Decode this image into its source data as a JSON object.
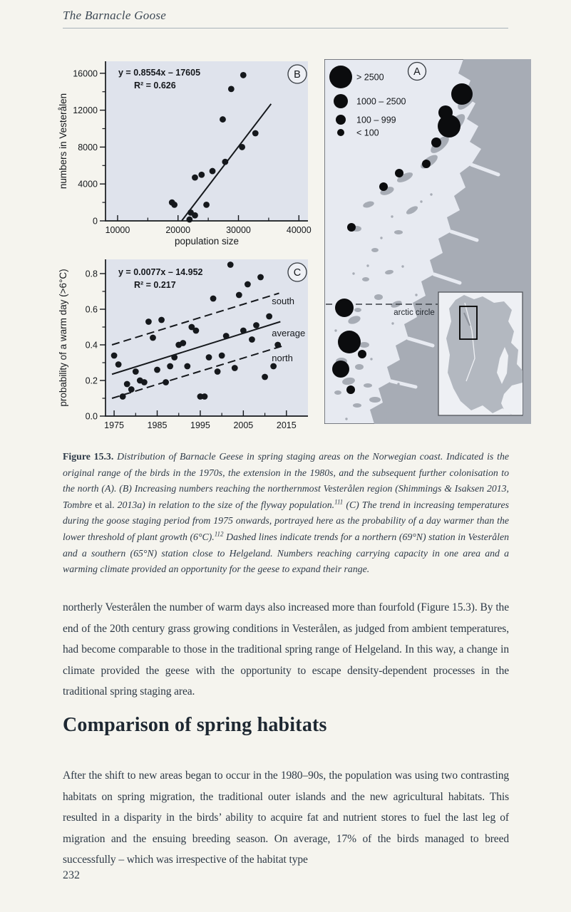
{
  "colors": {
    "page_background": "#f5f4ee",
    "panel_background": "#dfe3ec",
    "ink": "#15181c",
    "map_sea": "#e7eaf1",
    "map_land": "#a7acb5",
    "inset_sea": "#eef0f4",
    "inset_land": "#b3b8c0"
  },
  "page": {
    "running_header": "The Barnacle Goose",
    "page_number": "232"
  },
  "figure": {
    "map": {
      "badge": "A",
      "legend": [
        {
          "label": "> 2500",
          "r": 16
        },
        {
          "label": "1000 – 2500",
          "r": 10
        },
        {
          "label": "100 – 999",
          "r": 7
        },
        {
          "label": "< 100",
          "r": 5
        }
      ],
      "arctic_circle_label": "arctic circle",
      "sites": [
        [
          193,
          49,
          15
        ],
        [
          170,
          75,
          10
        ],
        [
          175,
          94,
          16
        ],
        [
          157,
          117,
          7
        ],
        [
          143,
          147,
          6
        ],
        [
          105,
          160,
          6
        ],
        [
          83,
          179,
          6
        ],
        [
          38,
          236,
          6
        ],
        [
          28,
          349,
          13
        ],
        [
          35,
          397,
          16
        ],
        [
          53,
          414,
          6
        ],
        [
          23,
          435,
          12
        ],
        [
          37,
          464,
          6
        ]
      ]
    },
    "caption_segments": [
      {
        "t": "bold",
        "s": "Figure 15.3. "
      },
      {
        "t": "i",
        "s": "Distribution of Barnacle Geese in spring staging areas on the Norwegian coast. Indicated is the original range of the birds in the 1970s, the extension in the 1980s, and the subsequent further colonisation to the north (A). (B) Increasing numbers reaching the northernmost Vesterålen region (Shimmings & Isaksen 2013, Tombre "
      },
      {
        "t": "r",
        "s": "et al."
      },
      {
        "t": "i",
        "s": " 2013a) in relation to the size of the flyway population."
      },
      {
        "t": "sup",
        "s": "111"
      },
      {
        "t": "i",
        "s": " (C) The trend in increasing temperatures during the goose staging period from 1975 onwards, portrayed here as the probability of a day warmer than the lower threshold of plant growth (6°C)."
      },
      {
        "t": "sup",
        "s": "112"
      },
      {
        "t": "i",
        "s": " Dashed lines indicate trends for a northern (69°N) station in Vesterålen and a southern (65°N) station close to Helgeland. Numbers reaching carrying capacity in one area and a warming climate provided an opportunity for the geese to expand their range."
      }
    ]
  },
  "chart_data": [
    {
      "id": "B",
      "type": "scatter",
      "badge": "B",
      "equation": "y = 0.8554x – 17605",
      "r_squared": "R² = 0.626",
      "xlabel": "population size",
      "ylabel": "numbers in Vesterålen",
      "xlim": [
        8000,
        41500
      ],
      "ylim": [
        0,
        17300
      ],
      "xticks": [
        [
          10000,
          "10000"
        ],
        [
          20000,
          "20000"
        ],
        [
          30000,
          "30000"
        ],
        [
          40000,
          "40000"
        ]
      ],
      "xminor": [
        15000,
        25000,
        35000
      ],
      "yticks": [
        [
          0,
          "0"
        ],
        [
          4000,
          "4000"
        ],
        [
          8000,
          "8000"
        ],
        [
          12000,
          "12000"
        ],
        [
          16000,
          "16000"
        ]
      ],
      "yminor": [
        2000,
        6000,
        10000,
        14000
      ],
      "points": [
        [
          19000,
          2000
        ],
        [
          19400,
          1750
        ],
        [
          21900,
          150
        ],
        [
          22100,
          900
        ],
        [
          22800,
          600
        ],
        [
          22800,
          4700
        ],
        [
          23900,
          5000
        ],
        [
          25700,
          5400
        ],
        [
          24700,
          1750
        ],
        [
          27800,
          6400
        ],
        [
          30600,
          8000
        ],
        [
          27400,
          11000
        ],
        [
          28800,
          14300
        ],
        [
          30800,
          15800
        ],
        [
          32800,
          9500
        ]
      ],
      "lines": [
        {
          "name": "fit",
          "style": "solid",
          "x1": 20600,
          "y1": 0,
          "x2": 35400,
          "y2": 12680
        }
      ],
      "legend_position": "none",
      "grid": false
    },
    {
      "id": "C",
      "type": "scatter",
      "badge": "C",
      "equation": "y = 0.0077x – 14.952",
      "r_squared": "R² = 0.217",
      "xlabel": "",
      "ylabel": "probability of a warm day (>6°C)",
      "xlim": [
        1973,
        2020
      ],
      "ylim": [
        0,
        0.88
      ],
      "xticks": [
        [
          1975,
          "1975"
        ],
        [
          1985,
          "1985"
        ],
        [
          1995,
          "1995"
        ],
        [
          2005,
          "2005"
        ],
        [
          2015,
          "2015"
        ]
      ],
      "xminor": [
        1980,
        1990,
        2000,
        2010
      ],
      "yticks": [
        [
          0,
          "0.0"
        ],
        [
          0.2,
          "0.2"
        ],
        [
          0.4,
          "0.4"
        ],
        [
          0.6,
          "0.6"
        ],
        [
          0.8,
          "0.8"
        ]
      ],
      "yminor": [
        0.1,
        0.3,
        0.5,
        0.7
      ],
      "points": [
        [
          1975,
          0.34
        ],
        [
          1976,
          0.29
        ],
        [
          1977,
          0.11
        ],
        [
          1978,
          0.18
        ],
        [
          1979,
          0.15
        ],
        [
          1980,
          0.25
        ],
        [
          1981,
          0.2
        ],
        [
          1982,
          0.19
        ],
        [
          1983,
          0.53
        ],
        [
          1984,
          0.44
        ],
        [
          1985,
          0.26
        ],
        [
          1986,
          0.54
        ],
        [
          1987,
          0.19
        ],
        [
          1988,
          0.28
        ],
        [
          1989,
          0.33
        ],
        [
          1990,
          0.4
        ],
        [
          1991,
          0.41
        ],
        [
          1992,
          0.28
        ],
        [
          1993,
          0.5
        ],
        [
          1994,
          0.48
        ],
        [
          1995,
          0.11
        ],
        [
          1996,
          0.11
        ],
        [
          1997,
          0.33
        ],
        [
          1998,
          0.66
        ],
        [
          1999,
          0.25
        ],
        [
          2000,
          0.34
        ],
        [
          2001,
          0.45
        ],
        [
          2002,
          0.85
        ],
        [
          2003,
          0.27
        ],
        [
          2004,
          0.68
        ],
        [
          2005,
          0.48
        ],
        [
          2006,
          0.74
        ],
        [
          2007,
          0.43
        ],
        [
          2008,
          0.51
        ],
        [
          2009,
          0.78
        ],
        [
          2010,
          0.22
        ],
        [
          2011,
          0.56
        ],
        [
          2012,
          0.28
        ],
        [
          2013,
          0.4
        ]
      ],
      "lines": [
        {
          "name": "south",
          "style": "dashed",
          "x1": 1974.5,
          "y1": 0.4,
          "x2": 2013.3,
          "y2": 0.69,
          "label": "south",
          "label_at": [
            2011.6,
            0.645
          ]
        },
        {
          "name": "average",
          "style": "solid",
          "x1": 1974.5,
          "y1": 0.235,
          "x2": 2013.6,
          "y2": 0.53,
          "label": "average",
          "label_at": [
            2011.6,
            0.465
          ]
        },
        {
          "name": "north",
          "style": "dashed",
          "x1": 1974.5,
          "y1": 0.1,
          "x2": 2014.3,
          "y2": 0.395,
          "label": "north",
          "label_at": [
            2011.6,
            0.325
          ]
        }
      ],
      "legend_position": "inline-line-labels",
      "grid": false
    }
  ],
  "content": {
    "heading": "Comparison of spring habitats",
    "paragraph_1": "northerly Vesterålen the number of warm days also increased more than fourfold (Figure 15.3). By the end of the 20th century grass growing conditions in Vesterålen, as judged from ambient temperatures, had become comparable to those in the traditional spring range of Helgeland. In this way, a change in climate provided the geese with the opportunity to escape density-dependent processes in the traditional spring staging area.",
    "paragraph_2": "After the shift to new areas began to occur in the 1980–90s, the population was using two contrasting habitats on spring migration, the traditional outer islands and the new agricultural habitats. This resulted in a disparity in the birds’ ability to acquire fat and nutrient stores to fuel the last leg of migration and the ensuing breeding season. On average, 17% of the birds managed to breed successfully – which was irrespective of the habitat type"
  }
}
